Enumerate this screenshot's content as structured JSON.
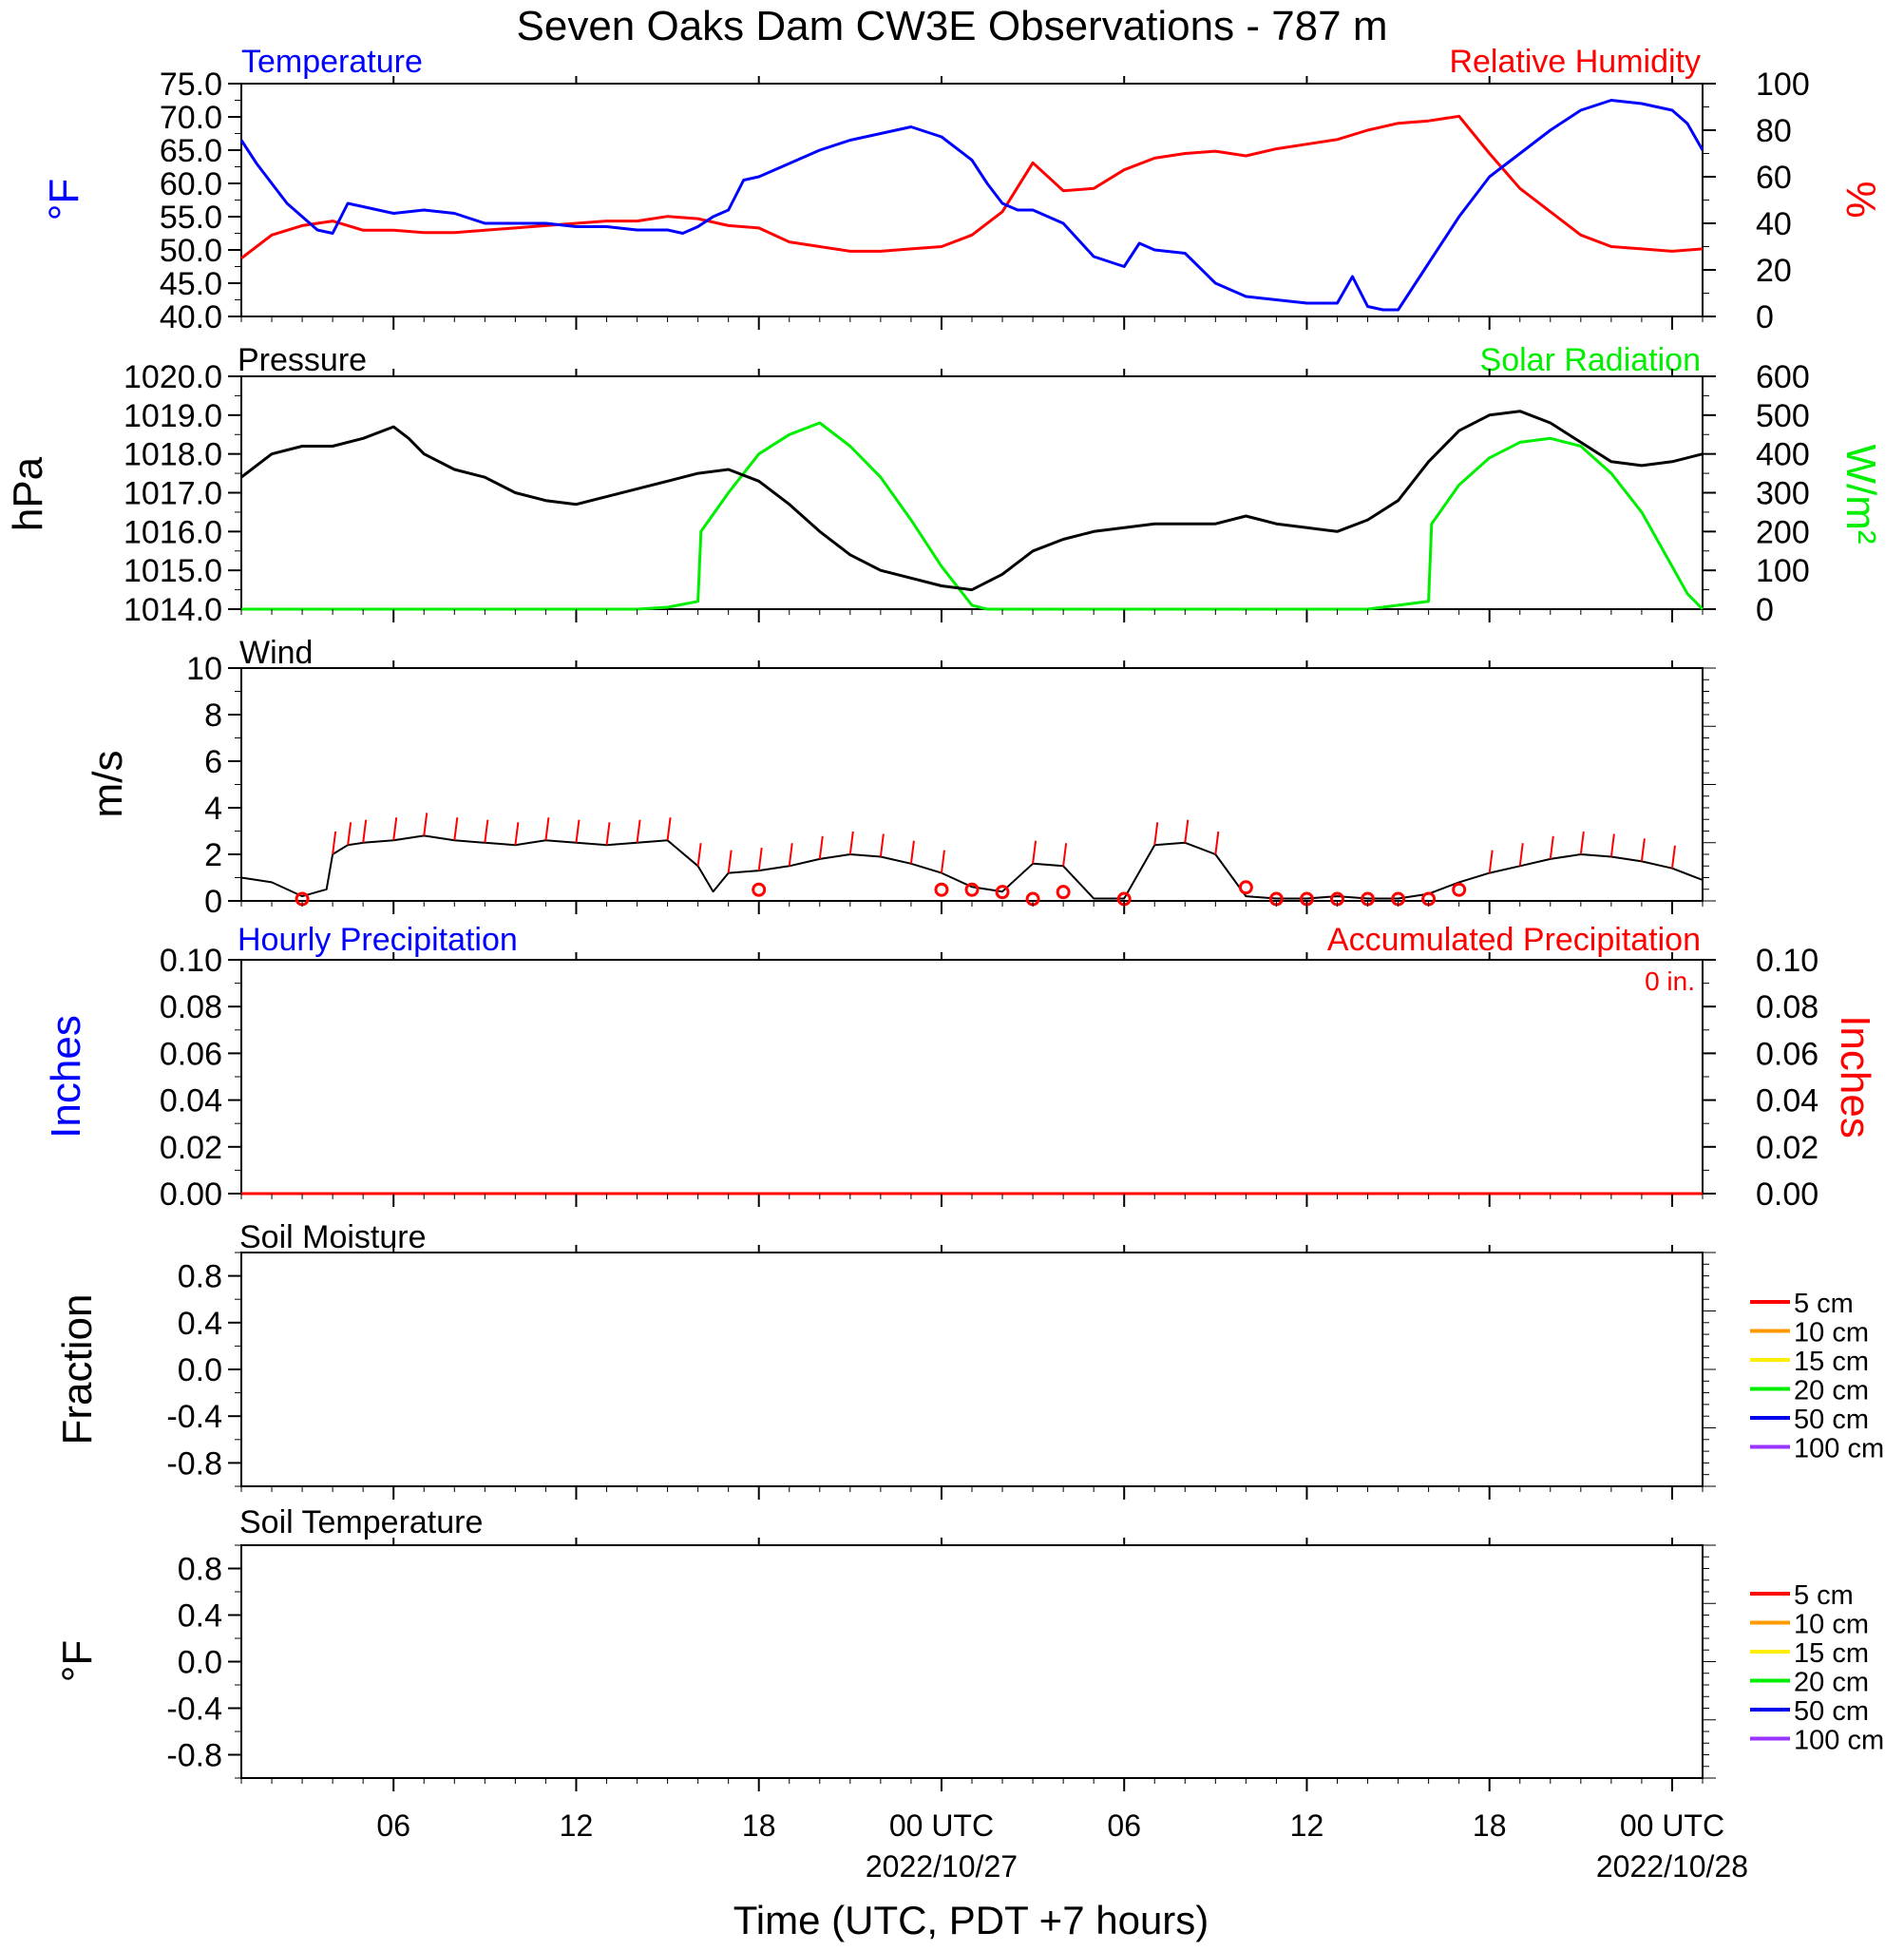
{
  "title": "Seven Oaks Dam CW3E Observations - 787 m",
  "x_axis": {
    "label": "Time (UTC, PDT +7 hours)",
    "ticks": [
      {
        "hour": 6,
        "label": "06",
        "sub": ""
      },
      {
        "hour": 12,
        "label": "12",
        "sub": ""
      },
      {
        "hour": 18,
        "label": "18",
        "sub": ""
      },
      {
        "hour": 24,
        "label": "00 UTC",
        "sub": "2022/10/27"
      },
      {
        "hour": 30,
        "label": "06",
        "sub": ""
      },
      {
        "hour": 36,
        "label": "12",
        "sub": ""
      },
      {
        "hour": 42,
        "label": "18",
        "sub": ""
      },
      {
        "hour": 48,
        "label": "00 UTC",
        "sub": "2022/10/28"
      }
    ],
    "range_hours": [
      1,
      49
    ]
  },
  "panels": {
    "temperature": {
      "left_title": "Temperature",
      "right_title": "Relative Humidity",
      "left_unit": "°F",
      "right_unit": "%",
      "left_ticks": [
        "40.0",
        "45.0",
        "50.0",
        "55.0",
        "60.0",
        "65.0",
        "70.0",
        "75.0"
      ],
      "right_ticks": [
        "0",
        "20",
        "40",
        "60",
        "80",
        "100"
      ]
    },
    "pressure": {
      "left_title": "Pressure",
      "right_title": "Solar Radiation",
      "left_unit": "hPa",
      "right_unit": "W/m²",
      "left_ticks": [
        "1014.0",
        "1015.0",
        "1016.0",
        "1017.0",
        "1018.0",
        "1019.0",
        "1020.0"
      ],
      "right_ticks": [
        "0",
        "100",
        "200",
        "300",
        "400",
        "500",
        "600"
      ]
    },
    "wind": {
      "left_title": "Wind",
      "left_unit": "m/s",
      "left_ticks": [
        "0",
        "2",
        "4",
        "6",
        "8",
        "10"
      ]
    },
    "precip": {
      "left_title": "Hourly Precipitation",
      "right_title": "Accumulated Precipitation",
      "accumulated_total": "0 in.",
      "left_unit": "Inches",
      "right_unit": "Inches",
      "left_ticks": [
        "0.00",
        "0.02",
        "0.04",
        "0.06",
        "0.08",
        "0.10"
      ],
      "right_ticks": [
        "0.00",
        "0.02",
        "0.04",
        "0.06",
        "0.08",
        "0.10"
      ]
    },
    "soil_moisture": {
      "left_title": "Soil Moisture",
      "left_unit": "Fraction",
      "left_ticks": [
        "-0.8",
        "-0.4",
        "0.0",
        "0.4",
        "0.8"
      ],
      "legend": [
        "5 cm",
        "10 cm",
        "15 cm",
        "20 cm",
        "50 cm",
        "100 cm"
      ]
    },
    "soil_temperature": {
      "left_title": "Soil Temperature",
      "left_unit": "°F",
      "left_ticks": [
        "-0.8",
        "-0.4",
        "0.0",
        "0.4",
        "0.8"
      ],
      "legend": [
        "5 cm",
        "10 cm",
        "15 cm",
        "20 cm",
        "50 cm",
        "100 cm"
      ]
    }
  },
  "colors": {
    "temperature": "#0000ff",
    "humidity": "#ff0000",
    "pressure": "#000000",
    "solar": "#00ee00",
    "wind": "#000000",
    "wind_barb": "#ff0000",
    "hourly_precip": "#0000ff",
    "accum_precip": "#ff0000",
    "legend": [
      "#ff0000",
      "#ff9900",
      "#ffee00",
      "#00ee00",
      "#0000ee",
      "#9933ff"
    ]
  },
  "chart_data": [
    {
      "type": "line",
      "title": "Temperature",
      "ylabel": "°F",
      "ylim": [
        40,
        75
      ],
      "x_units": "hours since 2022-10-26 00 UTC",
      "series": [
        {
          "name": "Temperature",
          "x": [
            1,
            1.5,
            2,
            2.5,
            3,
            3.5,
            4,
            4.5,
            5,
            6,
            7,
            8,
            9,
            10,
            11,
            12,
            13,
            14,
            15,
            15.5,
            16,
            16.5,
            17,
            17.5,
            18,
            19,
            20,
            21,
            22,
            23,
            24,
            25,
            25.5,
            26,
            26.5,
            27,
            28,
            29,
            30,
            30.5,
            31,
            32,
            33,
            34,
            35,
            36,
            37,
            37.5,
            38,
            38.5,
            39,
            40,
            41,
            42,
            43,
            44,
            45,
            46,
            47,
            48,
            48.5,
            49
          ],
          "values": [
            66.5,
            63,
            60,
            57,
            55,
            53,
            52.5,
            57,
            56.5,
            55.5,
            56,
            55.5,
            54,
            54,
            54,
            53.5,
            53.5,
            53,
            53,
            52.5,
            53.5,
            55,
            56,
            60.5,
            61,
            63,
            65,
            66.5,
            67.5,
            68.5,
            67,
            63.5,
            60,
            57,
            56,
            56,
            54,
            49,
            47.5,
            51,
            50,
            49.5,
            45,
            43,
            42.5,
            42,
            42,
            46,
            41.5,
            41,
            41,
            48,
            55,
            61,
            64.5,
            68,
            71,
            72.5,
            72,
            71,
            69,
            65
          ]
        },
        {
          "name": "Relative Humidity",
          "axis": "right",
          "ylim": [
            0,
            100
          ],
          "x": [
            1,
            2,
            3,
            4,
            5,
            6,
            7,
            8,
            9,
            10,
            11,
            12,
            13,
            14,
            15,
            16,
            17,
            18,
            19,
            20,
            21,
            22,
            23,
            24,
            25,
            26,
            27,
            28,
            29,
            30,
            31,
            32,
            33,
            34,
            35,
            36,
            37,
            38,
            39,
            40,
            41,
            42,
            43,
            44,
            45,
            46,
            47,
            48,
            49
          ],
          "values": [
            25,
            35,
            39,
            41,
            37,
            37,
            36,
            36,
            37,
            38,
            39,
            40,
            41,
            41,
            43,
            42,
            39,
            38,
            32,
            30,
            28,
            28,
            29,
            30,
            35,
            45,
            66,
            54,
            55,
            63,
            68,
            70,
            71,
            69,
            72,
            74,
            76,
            80,
            83,
            84,
            86,
            70,
            55,
            45,
            35,
            30,
            29,
            28,
            29
          ]
        }
      ]
    },
    {
      "type": "line",
      "title": "Pressure",
      "ylabel": "hPa",
      "ylim": [
        1014,
        1020
      ],
      "series": [
        {
          "name": "Pressure",
          "x": [
            1,
            2,
            3,
            4,
            5,
            6,
            6.5,
            7,
            8,
            9,
            10,
            11,
            12,
            13,
            14,
            15,
            16,
            17,
            18,
            19,
            20,
            21,
            22,
            23,
            24,
            25,
            26,
            27,
            28,
            29,
            30,
            31,
            32,
            33,
            34,
            35,
            36,
            37,
            38,
            39,
            40,
            41,
            42,
            43,
            44,
            45,
            46,
            47,
            48,
            49
          ],
          "values": [
            1017.4,
            1018.0,
            1018.2,
            1018.2,
            1018.4,
            1018.7,
            1018.4,
            1018.0,
            1017.6,
            1017.4,
            1017.0,
            1016.8,
            1016.7,
            1016.9,
            1017.1,
            1017.3,
            1017.5,
            1017.6,
            1017.3,
            1016.7,
            1016.0,
            1015.4,
            1015.0,
            1014.8,
            1014.6,
            1014.5,
            1014.9,
            1015.5,
            1015.8,
            1016.0,
            1016.1,
            1016.2,
            1016.2,
            1016.2,
            1016.4,
            1016.2,
            1016.1,
            1016.0,
            1016.3,
            1016.8,
            1017.8,
            1018.6,
            1019.0,
            1019.1,
            1018.8,
            1018.3,
            1017.8,
            1017.7,
            1017.8,
            1018.0
          ]
        },
        {
          "name": "Solar Radiation",
          "axis": "right",
          "ylim": [
            0,
            600
          ],
          "x": [
            1,
            14,
            15,
            16,
            16.1,
            17,
            18,
            19,
            20,
            21,
            22,
            23,
            24,
            25,
            25.5,
            38,
            39,
            40,
            40.1,
            41,
            42,
            43,
            44,
            45,
            46,
            47,
            48,
            48.5,
            49
          ],
          "values": [
            0,
            0,
            5,
            20,
            200,
            300,
            400,
            450,
            480,
            420,
            340,
            230,
            110,
            10,
            0,
            0,
            10,
            20,
            220,
            320,
            390,
            430,
            440,
            420,
            350,
            250,
            110,
            40,
            0
          ]
        }
      ]
    },
    {
      "type": "line",
      "title": "Wind",
      "ylabel": "m/s",
      "ylim": [
        0,
        10
      ],
      "series": [
        {
          "name": "Wind",
          "x": [
            1,
            2,
            3,
            3.8,
            4,
            4.5,
            5,
            6,
            7,
            8,
            9,
            10,
            11,
            12,
            13,
            14,
            15,
            16,
            16.5,
            17,
            18,
            19,
            20,
            21,
            22,
            23,
            24,
            25,
            26,
            27,
            28,
            29,
            30,
            31,
            32,
            33,
            34,
            35,
            36,
            37,
            38,
            39,
            40,
            41,
            42,
            43,
            44,
            45,
            46,
            47,
            48,
            49
          ],
          "values": [
            1.0,
            0.8,
            0.2,
            0.5,
            2.0,
            2.4,
            2.5,
            2.6,
            2.8,
            2.6,
            2.5,
            2.4,
            2.6,
            2.5,
            2.4,
            2.5,
            2.6,
            1.5,
            0.4,
            1.2,
            1.3,
            1.5,
            1.8,
            2.0,
            1.9,
            1.6,
            1.2,
            0.6,
            0.4,
            1.6,
            1.5,
            0.1,
            0.1,
            2.4,
            2.5,
            2.0,
            0.2,
            0.1,
            0.1,
            0.2,
            0.1,
            0.1,
            0.3,
            0.8,
            1.2,
            1.5,
            1.8,
            2.0,
            1.9,
            1.7,
            1.4,
            0.9
          ]
        },
        {
          "name": "Calm markers",
          "type": "scatter",
          "x": [
            3,
            18,
            24,
            25,
            26,
            27,
            28,
            30,
            34,
            35,
            36,
            37,
            38,
            39,
            40,
            41
          ],
          "values": [
            0,
            0.4,
            0.4,
            0.4,
            0.3,
            0,
            0.3,
            0,
            0.5,
            0,
            0,
            0,
            0,
            0,
            0,
            0.4
          ]
        }
      ]
    },
    {
      "type": "line",
      "title": "Hourly Precipitation",
      "ylabel": "Inches",
      "ylim": [
        0,
        0.1
      ],
      "series": [
        {
          "name": "Hourly Precipitation",
          "x": [
            1,
            49
          ],
          "values": [
            0,
            0
          ]
        },
        {
          "name": "Accumulated Precipitation",
          "axis": "right",
          "x": [
            1,
            49
          ],
          "values": [
            0,
            0
          ]
        }
      ]
    },
    {
      "type": "line",
      "title": "Soil Moisture",
      "ylabel": "Fraction",
      "ylim": [
        -1,
        1
      ],
      "series": []
    },
    {
      "type": "line",
      "title": "Soil Temperature",
      "ylabel": "°F",
      "ylim": [
        -1,
        1
      ],
      "series": []
    }
  ]
}
